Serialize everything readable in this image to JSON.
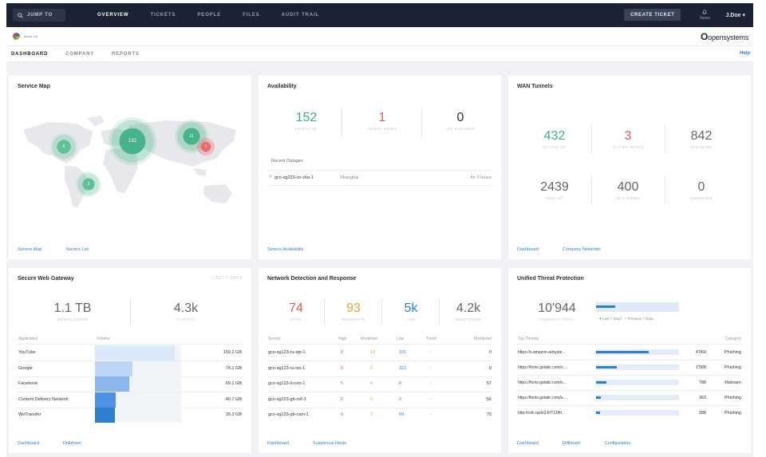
{
  "nav": {
    "jump_to": "JUMP TO",
    "items": [
      "OVERVIEW",
      "TICKETS",
      "PEOPLE",
      "FILES",
      "AUDIT TRAIL"
    ],
    "create_ticket": "CREATE TICKET",
    "news": "News",
    "user": "J.Doe"
  },
  "company": {
    "name": "Acme Ltd",
    "brand_bold": "O",
    "brand_rest": "opensystems"
  },
  "tabs": [
    "DASHBOARD",
    "COMPANY",
    "REPORTS"
  ],
  "help": "Help",
  "service_map": {
    "title": "Service Map",
    "bubbles": [
      "6",
      "132",
      "11",
      "1",
      "3"
    ],
    "links": [
      "Service Map",
      "Service List"
    ]
  },
  "availability": {
    "title": "Availability",
    "stats": [
      {
        "value": "152",
        "label": "HOSTS UP"
      },
      {
        "value": "1",
        "label": "HOSTS DOWN"
      },
      {
        "value": "0",
        "label": "ISP OUTAGES"
      }
    ],
    "recent_label": "Recent Outages",
    "outage": {
      "host": "gco-sg123-cn-sha-1",
      "city": "Shanghai",
      "duration": "for 3 hours"
    },
    "links": [
      "Service Availability"
    ]
  },
  "wan": {
    "title": "WAN Tunnels",
    "stats": [
      {
        "value": "432",
        "label": "ACTIVE UP"
      },
      {
        "value": "3",
        "label": "ACTIVE DOWN"
      },
      {
        "value": "842",
        "label": "DISABLED"
      },
      {
        "value": "2439",
        "label": "IDLE UP"
      },
      {
        "value": "400",
        "label": "IDLE DOWN"
      },
      {
        "value": "0",
        "label": "UNKNOWN"
      }
    ],
    "links": [
      "Dashboard",
      "Company Networks"
    ]
  },
  "swg": {
    "title": "Secure Web Gateway",
    "period": "LAST 7 DAYS",
    "stats": [
      {
        "value": "1.1 TB",
        "label": "DOWNLOADED"
      },
      {
        "value": "4.3k",
        "label": "CLIENTS"
      }
    ],
    "col_app": "Application",
    "col_vol": "Volume",
    "rows": [
      {
        "app": "YouTube",
        "volume": "159.2 GB",
        "share": 1.0
      },
      {
        "app": "Google",
        "volume": "74.1 GB",
        "share": 0.47
      },
      {
        "app": "Facebook",
        "volume": "69.1 GB",
        "share": 0.43
      },
      {
        "app": "Content Delivery Network",
        "volume": "40.7 GB",
        "share": 0.26
      },
      {
        "app": "WeTransfer",
        "volume": "39.3 GB",
        "share": 0.25
      }
    ],
    "links": [
      "Dashboard",
      "Drilldown"
    ]
  },
  "ndr": {
    "title": "Network Detection and Response",
    "stats": [
      {
        "value": "74",
        "label": "HIGH"
      },
      {
        "value": "93",
        "label": "MODERATE"
      },
      {
        "value": "5k",
        "label": "LOW"
      },
      {
        "value": "4.2k",
        "label": "MONITORED"
      }
    ],
    "cols": [
      "Sensor",
      "High",
      "Moderate",
      "Low",
      "Trend",
      "Monitored"
    ],
    "rows": [
      {
        "sensor": "gco-sg123-ru-stp-1",
        "high": "8",
        "moderate": "13",
        "low": "101",
        "trend": "~",
        "monitored": "0"
      },
      {
        "sensor": "gco-sg123-ru-nis-1",
        "high": "8",
        "moderate": "9",
        "low": "323",
        "trend": "~",
        "monitored": "0"
      },
      {
        "sensor": "gco-sg123-it-rom-1",
        "high": "5",
        "moderate": "6",
        "low": "8",
        "trend": "~",
        "monitored": "57"
      },
      {
        "sensor": "gco-sg123-gb-oxf-1",
        "high": "5",
        "moderate": "0",
        "low": "2",
        "trend": "~",
        "monitored": "56"
      },
      {
        "sensor": "gco-sg123-gb-cam-1",
        "high": "6",
        "moderate": "3",
        "low": "69",
        "trend": "~",
        "monitored": "79"
      }
    ],
    "links": [
      "Dashboard",
      "Suspicious Hosts"
    ]
  },
  "utp": {
    "title": "Unified Threat Protection",
    "total": "10'944",
    "total_label": "CURRENT TOTAL",
    "legend": [
      "Last 7 Days",
      "Previous 7 Days"
    ],
    "col_top": "Top Threats",
    "col_cat": "Category",
    "rows": [
      {
        "url": "https://s.amazon-adsyste...",
        "count": "4'069",
        "category": "Phishing",
        "share": 1.0
      },
      {
        "url": "https://fonts.gstatic.com/s...",
        "count": "1'568",
        "category": "Phishing",
        "share": 0.39
      },
      {
        "url": "https://fonts.gstatic.com/s...",
        "count": "788",
        "category": "Malware",
        "share": 0.19
      },
      {
        "url": "https://fonts.gstatic.com/s...",
        "count": "363",
        "category": "Phishing",
        "share": 0.09
      },
      {
        "url": "http://cdn.quilo3.fr/713/fri...",
        "count": "288",
        "category": "Phishing",
        "share": 0.07
      }
    ],
    "links": [
      "Dashboard",
      "Drilldown",
      "Configuration"
    ]
  },
  "colors": {
    "nav_bg": "#1b2233",
    "accent": "#2f7fd0",
    "green": "#3fae84",
    "red": "#e05858",
    "orange": "#e6a33a"
  }
}
